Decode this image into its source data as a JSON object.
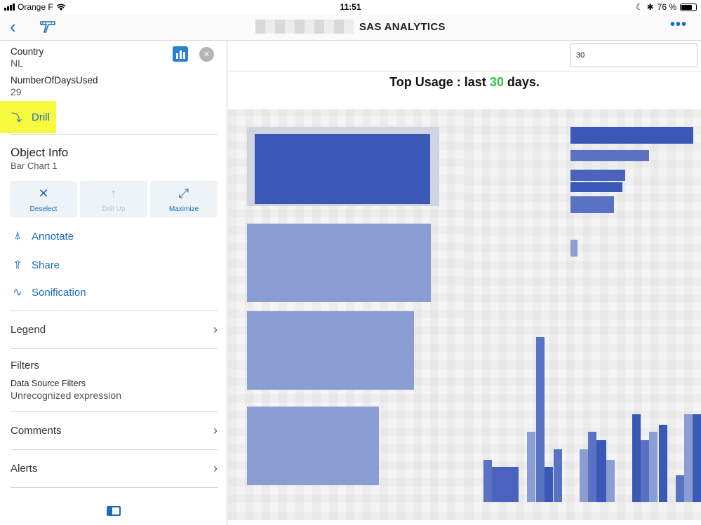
{
  "status": {
    "carrier": "Orange F",
    "time": "11:51",
    "battery": "76 %",
    "battery_level": 0.76
  },
  "nav": {
    "title": "SAS ANALYTICS",
    "back_icon": "chevron-left-icon",
    "tool_icon": "pen-tool-icon",
    "more_icon": "ellipsis-icon"
  },
  "panel": {
    "fields": [
      {
        "label": "Country",
        "value": "NL"
      },
      {
        "label": "NumberOfDaysUsed",
        "value": "29"
      }
    ],
    "drill_label": "Drill",
    "object_info": {
      "title": "Object Info",
      "subtitle": "Bar Chart 1"
    },
    "buttons": [
      {
        "label": "Deselect",
        "icon": "close-icon",
        "enabled": true
      },
      {
        "label": "Drill Up",
        "icon": "arrow-up-icon",
        "enabled": false
      },
      {
        "label": "Maximize",
        "icon": "maximize-icon",
        "enabled": true
      }
    ],
    "actions": [
      {
        "label": "Annotate",
        "icon": "annotate-icon"
      },
      {
        "label": "Share",
        "icon": "share-icon"
      },
      {
        "label": "Sonification",
        "icon": "sonification-icon"
      }
    ],
    "legend": "Legend",
    "filters": {
      "title": "Filters",
      "subtitle": "Data Source Filters",
      "value": "Unrecognized expression"
    },
    "comments": "Comments",
    "alerts": "Alerts"
  },
  "main": {
    "days_input": "30",
    "heading": {
      "prefix": "Top Usage : last ",
      "days": "30",
      "suffix": " days."
    }
  },
  "colors": {
    "accent": "#1b6bbf",
    "highlight": "#f7f93d",
    "bar_dark": "#3a58b6",
    "bar_light": "#8a9ed4",
    "green": "#2ecc40"
  }
}
